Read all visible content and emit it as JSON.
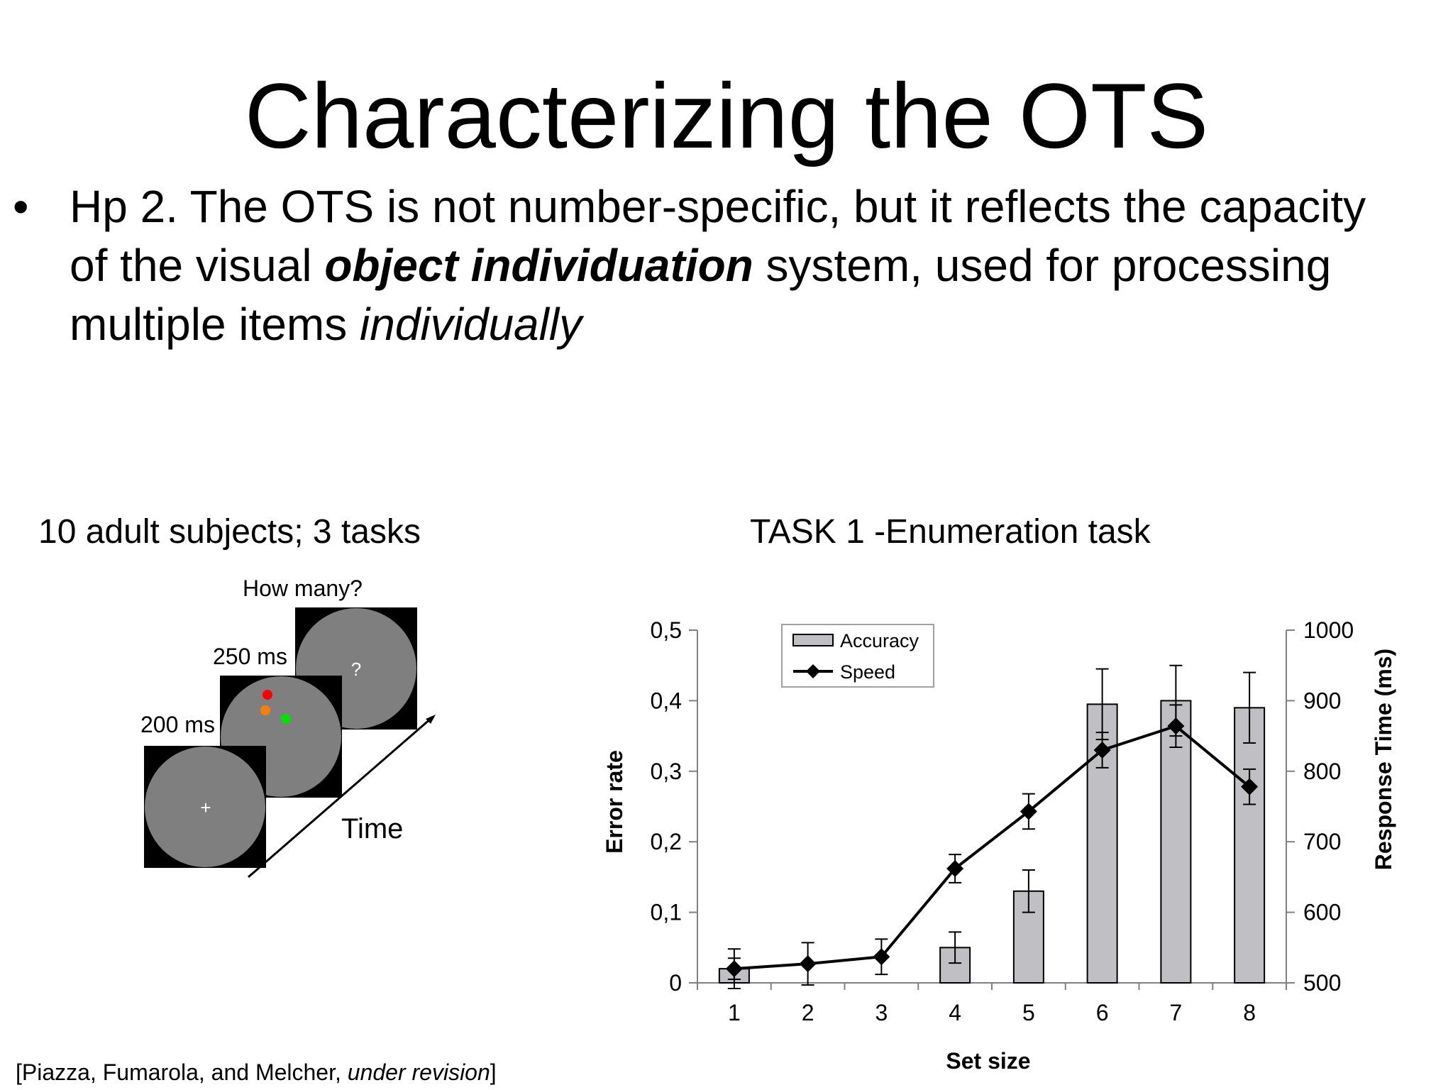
{
  "slide": {
    "title": "Characterizing the OTS",
    "bullet_glyph": "•",
    "bullet_parts": {
      "p1": "Hp 2. The OTS is not number-specific, but it reflects the capacity of the visual ",
      "p2": "object individuation",
      "p3": " system, used for processing multiple items ",
      "p4": "individually"
    },
    "left_heading": "10 adult subjects; 3 tasks",
    "right_heading": "TASK 1 -Enumeration task",
    "citation": {
      "pre": "[Piazza, Fumarola, and Melcher, ",
      "italic": "under revision",
      "post": "]"
    }
  },
  "diagram": {
    "label_how_many": "How many?",
    "label_250": "250 ms",
    "label_200": "200 ms",
    "label_time": "Time",
    "fixation_symbol": "+",
    "question_symbol": "?",
    "dot_colors": [
      "#ff0000",
      "#ff8000",
      "#00e000"
    ],
    "disc_color": "#7f7f7f",
    "frame_color": "#000000"
  },
  "chart_data": {
    "type": "bar",
    "categories": [
      "1",
      "2",
      "3",
      "4",
      "5",
      "6",
      "7",
      "8"
    ],
    "xlabel": "Set size",
    "ylabel": "Error rate",
    "ylabel_right": "Response Time (ms)",
    "ylim": [
      0,
      0.5
    ],
    "ylim_right": [
      500,
      1000
    ],
    "yticks": [
      "0",
      "0,1",
      "0,2",
      "0,3",
      "0,4",
      "0,5"
    ],
    "yticks_right": [
      "500",
      "600",
      "700",
      "800",
      "900",
      "1000"
    ],
    "legend_position": "top-left",
    "series": [
      {
        "name": "Accuracy",
        "kind": "bar",
        "axis": "left",
        "values": [
          0.02,
          null,
          null,
          0.05,
          0.13,
          0.395,
          0.4,
          0.39
        ],
        "error": [
          0.015,
          null,
          null,
          0.022,
          0.03,
          0.05,
          0.05,
          0.05
        ],
        "color": "#c0c0c4"
      },
      {
        "name": "Speed",
        "kind": "line",
        "axis": "right",
        "values": [
          520,
          527,
          537,
          662,
          743,
          830,
          864,
          778
        ],
        "error": [
          28,
          30,
          25,
          20,
          25,
          25,
          30,
          25
        ],
        "color": "#000000"
      }
    ]
  }
}
